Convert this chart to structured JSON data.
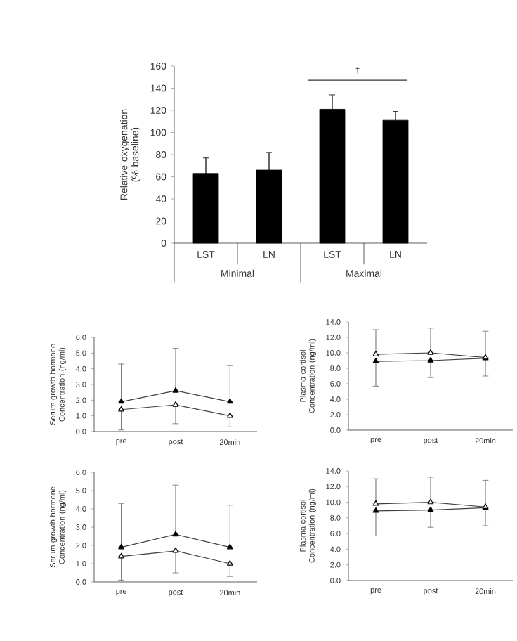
{
  "chart_data": [
    {
      "type": "bar",
      "categories": [
        "LST",
        "LN",
        "LST",
        "LN"
      ],
      "values": [
        63,
        66,
        121,
        111
      ],
      "errors": [
        14,
        16,
        13,
        8
      ],
      "color": "#000000",
      "ylabel": "Relative oxygenation (% baseline)",
      "ylim": [
        0,
        160
      ],
      "yticks": [
        0,
        20,
        40,
        60,
        80,
        100,
        120,
        140,
        160
      ],
      "annotations": [
        "Minimal",
        "Maximal",
        "†"
      ]
    },
    {
      "type": "line",
      "categories": [
        "pre",
        "post",
        "20min"
      ],
      "marker": "triangle",
      "ylabel": "Serum growth hormone Concentration (ng/ml)",
      "ylim": [
        0,
        6
      ],
      "yticks": [
        {
          "value": 0,
          "label": "0.0"
        },
        {
          "value": 1,
          "label": "1.0"
        },
        {
          "value": 2,
          "label": "2.0"
        },
        {
          "value": 3,
          "label": "3.0"
        },
        {
          "value": 4,
          "label": "4.0"
        },
        {
          "value": 5,
          "label": "5.0"
        },
        {
          "value": 6,
          "label": "6.0"
        }
      ],
      "series": [
        {
          "color": "#ffffff",
          "values": [
            1.4,
            1.7,
            1.0
          ],
          "errors": [
            [
              0.1,
              1.4
            ],
            [
              0.5,
              1.7
            ],
            [
              0.3,
              1.0
            ]
          ]
        },
        {
          "color": "#000000",
          "values": [
            1.9,
            2.6,
            1.9
          ],
          "errors": [
            [
              1.9,
              4.3
            ],
            [
              2.6,
              5.3
            ],
            [
              1.9,
              4.2
            ]
          ]
        }
      ]
    },
    {
      "type": "line",
      "categories": [
        "pre",
        "post",
        "20min"
      ],
      "marker": "triangle",
      "ylabel": "Plasma cortisol Concentration (ng/ml)",
      "ylim": [
        0,
        14
      ],
      "yticks": [
        {
          "value": 0,
          "label": "0.0"
        },
        {
          "value": 2,
          "label": "2.0"
        },
        {
          "value": 4,
          "label": "4.0"
        },
        {
          "value": 6,
          "label": "6.0"
        },
        {
          "value": 8,
          "label": "8.0"
        },
        {
          "value": 10,
          "label": "10.0"
        },
        {
          "value": 12,
          "label": "12.0"
        },
        {
          "value": 14,
          "label": "14.0"
        }
      ],
      "series": [
        {
          "color": "#000000",
          "values": [
            8.9,
            9.0,
            9.3
          ],
          "errors": [
            [
              5.7,
              8.9
            ],
            [
              6.8,
              9.0
            ],
            [
              7.0,
              9.3
            ]
          ]
        },
        {
          "color": "#ffffff",
          "values": [
            9.8,
            10.0,
            9.4
          ],
          "errors": [
            [
              9.8,
              13.0
            ],
            [
              10.0,
              13.2
            ],
            [
              9.4,
              12.8
            ]
          ]
        }
      ]
    },
    {
      "type": "line",
      "categories": [
        "pre",
        "post",
        "20min"
      ],
      "marker": "triangle",
      "ylabel": "Serum growth hormone Concentration (ng/ml)",
      "ylim": [
        0,
        6
      ],
      "yticks": [
        {
          "value": 0,
          "label": "0.0"
        },
        {
          "value": 1,
          "label": "1.0"
        },
        {
          "value": 2,
          "label": "2.0"
        },
        {
          "value": 3,
          "label": "3.0"
        },
        {
          "value": 4,
          "label": "4.0"
        },
        {
          "value": 5,
          "label": "5.0"
        },
        {
          "value": 6,
          "label": "6.0"
        }
      ],
      "series": [
        {
          "color": "#ffffff",
          "values": [
            1.4,
            1.7,
            1.0
          ],
          "errors": [
            [
              0.1,
              1.4
            ],
            [
              0.5,
              1.7
            ],
            [
              0.3,
              1.0
            ]
          ]
        },
        {
          "color": "#000000",
          "values": [
            1.9,
            2.6,
            1.9
          ],
          "errors": [
            [
              1.9,
              4.3
            ],
            [
              2.6,
              5.3
            ],
            [
              1.9,
              4.2
            ]
          ]
        }
      ]
    },
    {
      "type": "line",
      "categories": [
        "pre",
        "post",
        "20min"
      ],
      "marker": "triangle",
      "ylabel": "Plasma cortisol Concentration (ng/ml)",
      "ylim": [
        0,
        14
      ],
      "yticks": [
        {
          "value": 0,
          "label": "0.0"
        },
        {
          "value": 2,
          "label": "2.0"
        },
        {
          "value": 4,
          "label": "4.0"
        },
        {
          "value": 6,
          "label": "6.0"
        },
        {
          "value": 8,
          "label": "8.0"
        },
        {
          "value": 10,
          "label": "10.0"
        },
        {
          "value": 12,
          "label": "12.0"
        },
        {
          "value": 14,
          "label": "14.0"
        }
      ],
      "series": [
        {
          "color": "#000000",
          "values": [
            8.9,
            9.0,
            9.3
          ],
          "errors": [
            [
              5.7,
              8.9
            ],
            [
              6.8,
              9.0
            ],
            [
              7.0,
              9.3
            ]
          ]
        },
        {
          "color": "#ffffff",
          "values": [
            9.8,
            10.0,
            9.4
          ],
          "errors": [
            [
              9.8,
              13.0
            ],
            [
              10.0,
              13.2
            ],
            [
              9.4,
              12.8
            ]
          ]
        }
      ]
    }
  ]
}
